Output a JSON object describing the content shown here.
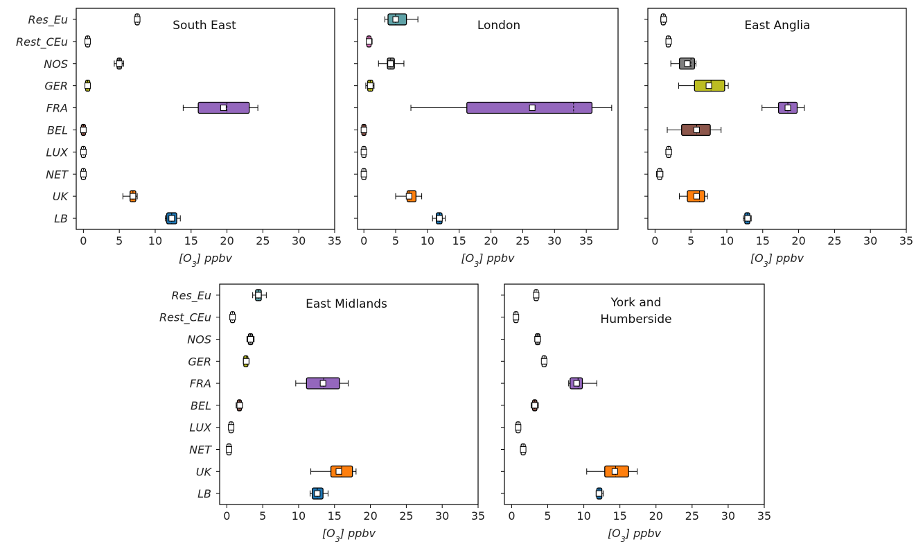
{
  "chart_data": [
    {
      "type": "boxplot",
      "title": "South East",
      "title_lines": [
        "South East"
      ],
      "xlabel": "[O3] ppbv",
      "xlim": [
        -1,
        35
      ],
      "xticks": [
        0,
        5,
        10,
        15,
        20,
        25,
        30,
        35
      ],
      "categories": [
        "Res_Eu",
        "Rest_CEu",
        "NOS",
        "GER",
        "FRA",
        "BEL",
        "LUX",
        "NET",
        "UK",
        "LB"
      ],
      "boxes": [
        {
          "category": "Res_Eu",
          "whislo": 7.2,
          "q1": 7.3,
          "med": 7.5,
          "mean": 7.5,
          "q3": 7.7,
          "whishi": 7.8,
          "color": "#ffffff"
        },
        {
          "category": "Rest_CEu",
          "whislo": 0.4,
          "q1": 0.5,
          "med": 0.6,
          "mean": 0.6,
          "q3": 0.7,
          "whishi": 0.8,
          "color": "#ffffff"
        },
        {
          "category": "NOS",
          "whislo": 4.3,
          "q1": 4.7,
          "med": 5.0,
          "mean": 5.0,
          "q3": 5.3,
          "whishi": 5.6,
          "color": "#7f7f7f"
        },
        {
          "category": "GER",
          "whislo": 0.4,
          "q1": 0.5,
          "med": 0.6,
          "mean": 0.6,
          "q3": 0.7,
          "whishi": 0.8,
          "color": "#bcbd22"
        },
        {
          "category": "FRA",
          "whislo": 13.9,
          "q1": 16.0,
          "med": 20.0,
          "mean": 19.5,
          "q3": 23.1,
          "whishi": 24.3,
          "color": "#9467bd"
        },
        {
          "category": "BEL",
          "whislo": -0.1,
          "q1": -0.05,
          "med": 0.0,
          "mean": 0.0,
          "q3": 0.05,
          "whishi": 0.1,
          "color": "#8c564b"
        },
        {
          "category": "LUX",
          "whislo": -0.1,
          "q1": -0.05,
          "med": 0.0,
          "mean": 0.0,
          "q3": 0.05,
          "whishi": 0.1,
          "color": "#ffffff"
        },
        {
          "category": "NET",
          "whislo": -0.1,
          "q1": -0.05,
          "med": 0.0,
          "mean": 0.0,
          "q3": 0.05,
          "whishi": 0.1,
          "color": "#ffffff"
        },
        {
          "category": "UK",
          "whislo": 5.5,
          "q1": 6.5,
          "med": 6.9,
          "mean": 6.9,
          "q3": 7.3,
          "whishi": 7.5,
          "color": "#ff7f0e"
        },
        {
          "category": "LB",
          "whislo": 11.4,
          "q1": 11.6,
          "med": 12.3,
          "mean": 12.3,
          "q3": 13.0,
          "whishi": 13.5,
          "color": "#1f77b4"
        }
      ]
    },
    {
      "type": "boxplot",
      "title": "London",
      "title_lines": [
        "London"
      ],
      "xlabel": "[O3] ppbv",
      "xlim": [
        -1,
        40
      ],
      "xticks": [
        0,
        5,
        10,
        15,
        20,
        25,
        30,
        35
      ],
      "categories": [
        "Res_Eu",
        "Rest_CEu",
        "NOS",
        "GER",
        "FRA",
        "BEL",
        "LUX",
        "NET",
        "UK",
        "LB"
      ],
      "boxes": [
        {
          "category": "Res_Eu",
          "whislo": 3.3,
          "q1": 3.8,
          "med": 5.0,
          "mean": 5.0,
          "q3": 6.7,
          "whishi": 8.5,
          "color": "#5fa2a7"
        },
        {
          "category": "Rest_CEu",
          "whislo": 0.4,
          "q1": 0.5,
          "med": 0.8,
          "mean": 0.8,
          "q3": 1.1,
          "whishi": 1.3,
          "color": "#e377c2"
        },
        {
          "category": "NOS",
          "whislo": 2.3,
          "q1": 3.7,
          "med": 4.2,
          "mean": 4.2,
          "q3": 4.8,
          "whishi": 6.3,
          "color": "#7f7f7f"
        },
        {
          "category": "GER",
          "whislo": 0.3,
          "q1": 0.6,
          "med": 1.0,
          "mean": 1.0,
          "q3": 1.4,
          "whishi": 1.6,
          "color": "#bcbd22"
        },
        {
          "category": "FRA",
          "whislo": 7.4,
          "q1": 16.2,
          "med": 33.0,
          "mean": 26.5,
          "q3": 35.9,
          "whishi": 39.0,
          "color": "#9467bd"
        },
        {
          "category": "BEL",
          "whislo": -0.1,
          "q1": -0.05,
          "med": 0.0,
          "mean": 0.0,
          "q3": 0.05,
          "whishi": 0.1,
          "color": "#8c564b"
        },
        {
          "category": "LUX",
          "whislo": -0.1,
          "q1": -0.05,
          "med": 0.0,
          "mean": 0.0,
          "q3": 0.05,
          "whishi": 0.1,
          "color": "#ffffff"
        },
        {
          "category": "NET",
          "whislo": -0.1,
          "q1": -0.05,
          "med": 0.0,
          "mean": 0.0,
          "q3": 0.05,
          "whishi": 0.1,
          "color": "#ffffff"
        },
        {
          "category": "UK",
          "whislo": 5.0,
          "q1": 6.8,
          "med": 7.1,
          "mean": 7.1,
          "q3": 8.2,
          "whishi": 9.1,
          "color": "#ff7f0e"
        },
        {
          "category": "LB",
          "whislo": 10.8,
          "q1": 11.4,
          "med": 11.9,
          "mean": 11.9,
          "q3": 12.3,
          "whishi": 12.8,
          "color": "#1f77b4"
        }
      ]
    },
    {
      "type": "boxplot",
      "title": "East Anglia",
      "title_lines": [
        "East Anglia"
      ],
      "xlabel": "[O3] ppbv",
      "xlim": [
        -1,
        35
      ],
      "xticks": [
        0,
        5,
        10,
        15,
        20,
        25,
        30,
        35
      ],
      "categories": [
        "Res_Eu",
        "Rest_CEu",
        "NOS",
        "GER",
        "FRA",
        "BEL",
        "LUX",
        "NET",
        "UK",
        "LB"
      ],
      "boxes": [
        {
          "category": "Res_Eu",
          "whislo": 0.8,
          "q1": 0.9,
          "med": 1.2,
          "mean": 1.2,
          "q3": 1.4,
          "whishi": 1.6,
          "color": "#ffffff"
        },
        {
          "category": "Rest_CEu",
          "whislo": 1.6,
          "q1": 1.7,
          "med": 1.9,
          "mean": 1.9,
          "q3": 2.0,
          "whishi": 2.1,
          "color": "#ffffff"
        },
        {
          "category": "NOS",
          "whislo": 2.2,
          "q1": 3.4,
          "med": 5.0,
          "mean": 4.5,
          "q3": 5.5,
          "whishi": 5.7,
          "color": "#7f7f7f"
        },
        {
          "category": "GER",
          "whislo": 3.3,
          "q1": 5.5,
          "med": 7.8,
          "mean": 7.5,
          "q3": 9.7,
          "whishi": 10.2,
          "color": "#bcbd22"
        },
        {
          "category": "FRA",
          "whislo": 14.9,
          "q1": 17.2,
          "med": 18.5,
          "mean": 18.5,
          "q3": 19.8,
          "whishi": 20.8,
          "color": "#9467bd"
        },
        {
          "category": "BEL",
          "whislo": 1.7,
          "q1": 3.7,
          "med": 5.8,
          "mean": 5.8,
          "q3": 7.7,
          "whishi": 9.2,
          "color": "#8c564b"
        },
        {
          "category": "LUX",
          "whislo": 1.5,
          "q1": 1.7,
          "med": 1.9,
          "mean": 1.9,
          "q3": 2.1,
          "whishi": 2.3,
          "color": "#ffffff"
        },
        {
          "category": "NET",
          "whislo": 0.2,
          "q1": 0.4,
          "med": 0.7,
          "mean": 0.7,
          "q3": 0.9,
          "whishi": 1.1,
          "color": "#ffffff"
        },
        {
          "category": "UK",
          "whislo": 3.4,
          "q1": 4.5,
          "med": 6.2,
          "mean": 5.8,
          "q3": 6.9,
          "whishi": 7.3,
          "color": "#ff7f0e"
        },
        {
          "category": "LB",
          "whislo": 12.3,
          "q1": 12.5,
          "med": 12.9,
          "mean": 12.9,
          "q3": 13.2,
          "whishi": 13.4,
          "color": "#1f77b4"
        }
      ]
    },
    {
      "type": "boxplot",
      "title": "East Midlands",
      "title_lines": [
        "East Midlands"
      ],
      "xlabel": "[O3] ppbv",
      "xlim": [
        -1,
        35
      ],
      "xticks": [
        0,
        5,
        10,
        15,
        20,
        25,
        30,
        35
      ],
      "categories": [
        "Res_Eu",
        "Rest_CEu",
        "NOS",
        "GER",
        "FRA",
        "BEL",
        "LUX",
        "NET",
        "UK",
        "LB"
      ],
      "boxes": [
        {
          "category": "Res_Eu",
          "whislo": 3.6,
          "q1": 4.0,
          "med": 4.4,
          "mean": 4.4,
          "q3": 4.8,
          "whishi": 5.5,
          "color": "#5fa2a7"
        },
        {
          "category": "Rest_CEu",
          "whislo": 0.5,
          "q1": 0.6,
          "med": 0.8,
          "mean": 0.8,
          "q3": 1.0,
          "whishi": 1.1,
          "color": "#ffffff"
        },
        {
          "category": "NOS",
          "whislo": 2.8,
          "q1": 3.0,
          "med": 3.3,
          "mean": 3.3,
          "q3": 3.6,
          "whishi": 3.8,
          "color": "#7f7f7f"
        },
        {
          "category": "GER",
          "whislo": 2.3,
          "q1": 2.4,
          "med": 2.7,
          "mean": 2.7,
          "q3": 2.9,
          "whishi": 3.1,
          "color": "#bcbd22"
        },
        {
          "category": "FRA",
          "whislo": 9.6,
          "q1": 11.1,
          "med": 13.5,
          "mean": 13.4,
          "q3": 15.7,
          "whishi": 16.9,
          "color": "#9467bd"
        },
        {
          "category": "BEL",
          "whislo": 1.3,
          "q1": 1.5,
          "med": 1.8,
          "mean": 1.8,
          "q3": 2.0,
          "whishi": 2.2,
          "color": "#8c564b"
        },
        {
          "category": "LUX",
          "whislo": 0.3,
          "q1": 0.4,
          "med": 0.6,
          "mean": 0.6,
          "q3": 0.8,
          "whishi": 0.9,
          "color": "#ffffff"
        },
        {
          "category": "NET",
          "whislo": 0.0,
          "q1": 0.1,
          "med": 0.3,
          "mean": 0.3,
          "q3": 0.5,
          "whishi": 0.6,
          "color": "#ffffff"
        },
        {
          "category": "UK",
          "whislo": 11.7,
          "q1": 14.5,
          "med": 16.0,
          "mean": 15.6,
          "q3": 17.5,
          "whishi": 18.0,
          "color": "#ff7f0e"
        },
        {
          "category": "LB",
          "whislo": 11.6,
          "q1": 11.9,
          "med": 12.6,
          "mean": 12.6,
          "q3": 13.4,
          "whishi": 14.1,
          "color": "#1f77b4"
        }
      ]
    },
    {
      "type": "boxplot",
      "title": "York and Humberside",
      "title_lines": [
        "York and",
        "Humberside"
      ],
      "xlabel": "[O3] ppbv",
      "xlim": [
        -1,
        35
      ],
      "xticks": [
        0,
        5,
        10,
        15,
        20,
        25,
        30,
        35
      ],
      "categories": [
        "Res_Eu",
        "Rest_CEu",
        "NOS",
        "GER",
        "FRA",
        "BEL",
        "LUX",
        "NET",
        "UK",
        "LB"
      ],
      "boxes": [
        {
          "category": "Res_Eu",
          "whislo": 3.1,
          "q1": 3.2,
          "med": 3.4,
          "mean": 3.4,
          "q3": 3.6,
          "whishi": 3.7,
          "color": "#ffffff"
        },
        {
          "category": "Rest_CEu",
          "whislo": 0.3,
          "q1": 0.4,
          "med": 0.6,
          "mean": 0.6,
          "q3": 0.8,
          "whishi": 0.9,
          "color": "#ffffff"
        },
        {
          "category": "NOS",
          "whislo": 3.2,
          "q1": 3.3,
          "med": 3.6,
          "mean": 3.6,
          "q3": 3.9,
          "whishi": 4.0,
          "color": "#7f7f7f"
        },
        {
          "category": "GER",
          "whislo": 4.2,
          "q1": 4.3,
          "med": 4.5,
          "mean": 4.5,
          "q3": 4.7,
          "whishi": 4.8,
          "color": "#ffffff"
        },
        {
          "category": "FRA",
          "whislo": 7.9,
          "q1": 8.1,
          "med": 9.2,
          "mean": 9.0,
          "q3": 9.8,
          "whishi": 11.8,
          "color": "#9467bd"
        },
        {
          "category": "BEL",
          "whislo": 2.7,
          "q1": 2.9,
          "med": 3.2,
          "mean": 3.2,
          "q3": 3.5,
          "whishi": 3.7,
          "color": "#8c564b"
        },
        {
          "category": "LUX",
          "whislo": 0.6,
          "q1": 0.7,
          "med": 0.9,
          "mean": 0.9,
          "q3": 1.1,
          "whishi": 1.2,
          "color": "#ffffff"
        },
        {
          "category": "NET",
          "whislo": 1.3,
          "q1": 1.4,
          "med": 1.6,
          "mean": 1.6,
          "q3": 1.8,
          "whishi": 1.9,
          "color": "#ffffff"
        },
        {
          "category": "UK",
          "whislo": 10.4,
          "q1": 12.9,
          "med": 14.4,
          "mean": 14.3,
          "q3": 16.2,
          "whishi": 17.4,
          "color": "#ff7f0e"
        },
        {
          "category": "LB",
          "whislo": 11.7,
          "q1": 11.8,
          "med": 12.1,
          "mean": 12.1,
          "q3": 12.5,
          "whishi": 12.7,
          "color": "#1f77b4"
        }
      ]
    }
  ]
}
